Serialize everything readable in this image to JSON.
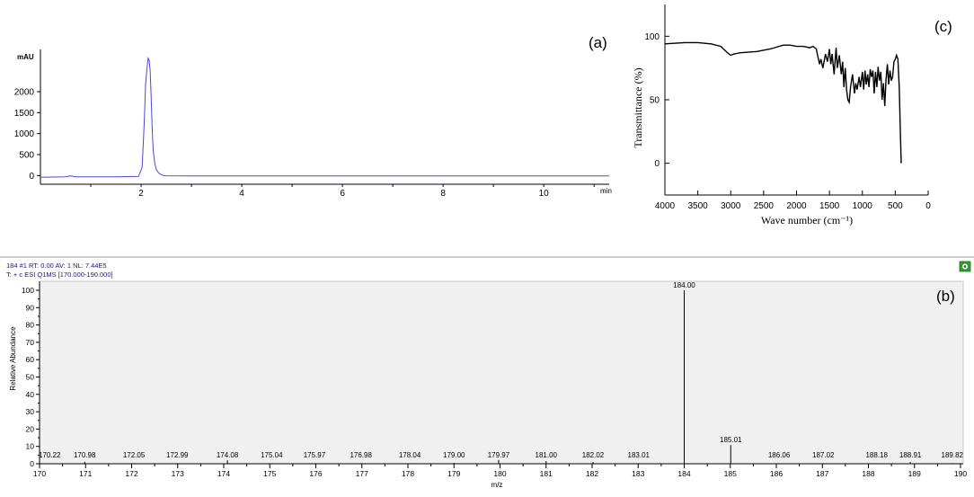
{
  "chart_data": [
    {
      "id": "a",
      "panel_label": "(a)",
      "type": "line",
      "ylabel": "mAU",
      "xlabel": "min",
      "xlim": [
        0,
        11.3
      ],
      "ylim": [
        -100,
        2900
      ],
      "xticks": [
        2,
        4,
        6,
        8,
        10
      ],
      "yticks": [
        0,
        500,
        1000,
        1500,
        2000
      ],
      "line_color": "#4a4ad8",
      "series": [
        {
          "x": [
            0.0,
            0.5,
            0.58,
            0.63,
            0.7,
            1.0,
            1.5,
            1.95,
            2.02,
            2.06,
            2.09,
            2.12,
            2.14,
            2.16,
            2.18,
            2.2,
            2.22,
            2.24,
            2.27,
            2.3,
            2.35,
            2.42,
            2.5,
            3.0,
            5.0,
            8.0,
            11.3
          ],
          "y": [
            -40,
            -30,
            -10,
            -15,
            -30,
            -30,
            -30,
            -20,
            200,
            1200,
            2200,
            2600,
            2800,
            2750,
            2500,
            1900,
            1100,
            600,
            300,
            150,
            60,
            10,
            -5,
            -10,
            -10,
            -10,
            -10
          ]
        }
      ]
    },
    {
      "id": "c",
      "panel_label": "(c)",
      "type": "line",
      "ylabel": "Transmittance (%)",
      "xlabel": "Wave number (cm⁻¹)",
      "xlim": [
        4000,
        0
      ],
      "ylim": [
        -25,
        125
      ],
      "xticks": [
        4000,
        3500,
        3000,
        2500,
        2000,
        1500,
        1000,
        500,
        0
      ],
      "yticks": [
        0,
        50,
        100
      ],
      "line_color": "#000000",
      "series": [
        {
          "x": [
            4000,
            3700,
            3500,
            3300,
            3150,
            3050,
            3000,
            2950,
            2850,
            2600,
            2400,
            2200,
            2100,
            2000,
            1900,
            1800,
            1750,
            1700,
            1680,
            1650,
            1630,
            1600,
            1560,
            1530,
            1500,
            1480,
            1460,
            1430,
            1400,
            1380,
            1350,
            1320,
            1300,
            1280,
            1260,
            1240,
            1220,
            1200,
            1180,
            1150,
            1120,
            1100,
            1080,
            1050,
            1030,
            1000,
            980,
            960,
            940,
            920,
            900,
            880,
            860,
            840,
            820,
            800,
            780,
            760,
            740,
            720,
            700,
            680,
            660,
            640,
            620,
            600,
            580,
            560,
            540,
            520,
            500,
            480,
            460,
            440,
            430,
            420,
            410
          ],
          "y": [
            94,
            95,
            95,
            94,
            92,
            87,
            85,
            86,
            87,
            88,
            90,
            93,
            93,
            92,
            92,
            91,
            92,
            90,
            85,
            78,
            82,
            75,
            86,
            80,
            90,
            78,
            86,
            70,
            91,
            75,
            85,
            70,
            80,
            60,
            75,
            58,
            50,
            48,
            60,
            70,
            55,
            63,
            58,
            68,
            60,
            72,
            58,
            73,
            62,
            70,
            60,
            74,
            68,
            73,
            55,
            72,
            60,
            76,
            65,
            72,
            50,
            63,
            45,
            66,
            78,
            62,
            73,
            65,
            68,
            80,
            82,
            85,
            82,
            60,
            40,
            20,
            0
          ]
        }
      ]
    },
    {
      "id": "b",
      "panel_label": "(b)",
      "type": "bar",
      "header_line1": "184 #1  RT: 0.00  AV: 1  NL: 7.44E5",
      "header_line2": "T: + c ESI Q1MS [170.000-190.000]",
      "ylabel": "Relative Abundance",
      "xlabel": "m/z",
      "xlim": [
        170,
        190
      ],
      "ylim": [
        0,
        100
      ],
      "xticks": [
        170,
        171,
        172,
        173,
        174,
        175,
        176,
        177,
        178,
        179,
        180,
        181,
        182,
        183,
        184,
        185,
        186,
        187,
        188,
        189,
        190
      ],
      "yticks": [
        0,
        10,
        20,
        30,
        40,
        50,
        60,
        70,
        80,
        90,
        100
      ],
      "peaks": [
        {
          "label": "170.22",
          "mz": 170.22,
          "abundance": 0.2
        },
        {
          "label": "170.98",
          "mz": 170.98,
          "abundance": 1.2
        },
        {
          "label": "172.05",
          "mz": 172.05,
          "abundance": 0.3
        },
        {
          "label": "172.99",
          "mz": 172.99,
          "abundance": 0.3
        },
        {
          "label": "174.08",
          "mz": 174.08,
          "abundance": 2.0
        },
        {
          "label": "175.04",
          "mz": 175.04,
          "abundance": 0.3
        },
        {
          "label": "175.97",
          "mz": 175.97,
          "abundance": 0.3
        },
        {
          "label": "176.98",
          "mz": 176.98,
          "abundance": 0.3
        },
        {
          "label": "178.04",
          "mz": 178.04,
          "abundance": 0.3
        },
        {
          "label": "179.00",
          "mz": 179.0,
          "abundance": 0.5
        },
        {
          "label": "179.97",
          "mz": 179.97,
          "abundance": 2.2
        },
        {
          "label": "181.00",
          "mz": 181.0,
          "abundance": 1.5
        },
        {
          "label": "182.02",
          "mz": 182.02,
          "abundance": 1.0
        },
        {
          "label": "183.01",
          "mz": 183.01,
          "abundance": 0.3
        },
        {
          "label": "184.00",
          "mz": 184.0,
          "abundance": 100
        },
        {
          "label": "185.01",
          "mz": 185.01,
          "abundance": 10.8
        },
        {
          "label": "186.06",
          "mz": 186.06,
          "abundance": 0.3
        },
        {
          "label": "187.02",
          "mz": 187.02,
          "abundance": 0.3
        },
        {
          "label": "188.18",
          "mz": 188.18,
          "abundance": 0.3
        },
        {
          "label": "188.91",
          "mz": 188.91,
          "abundance": 1.0
        },
        {
          "label": "189.82",
          "mz": 189.82,
          "abundance": 0.3
        }
      ]
    }
  ],
  "colors": {
    "msPlotBackground": "#f0f0f0",
    "msHeaderText": "#1a1a7a",
    "msIconGreen": "#2f9e2f"
  },
  "icon": "spectrum-view-icon"
}
